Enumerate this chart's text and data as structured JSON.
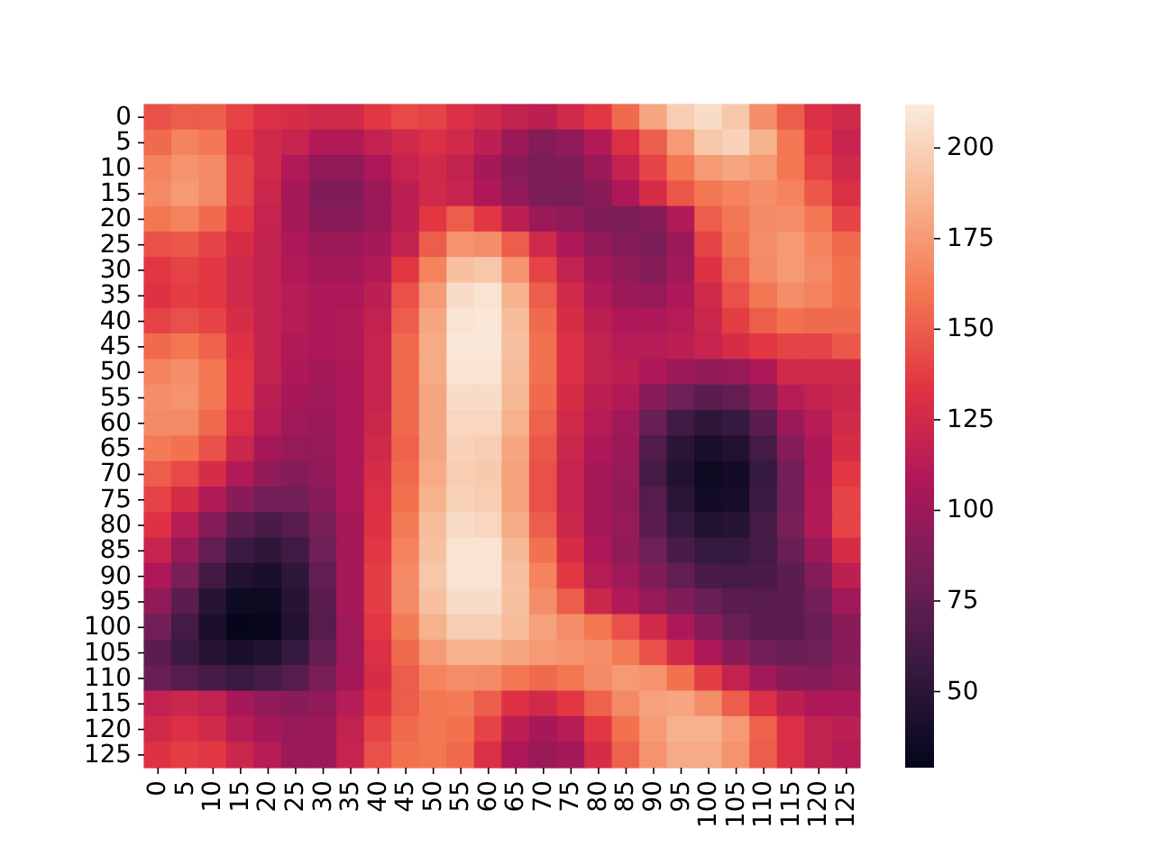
{
  "chart_data": {
    "type": "heatmap",
    "categories": [
      "0",
      "5",
      "10",
      "15",
      "20",
      "25",
      "30",
      "35",
      "40",
      "45",
      "50",
      "55",
      "60",
      "65",
      "70",
      "75",
      "80",
      "85",
      "90",
      "95",
      "100",
      "105",
      "110",
      "115",
      "120",
      "125"
    ],
    "y_categories": [
      "0",
      "5",
      "10",
      "15",
      "20",
      "25",
      "30",
      "35",
      "40",
      "45",
      "50",
      "55",
      "60",
      "65",
      "70",
      "75",
      "80",
      "85",
      "90",
      "95",
      "100",
      "105",
      "110",
      "115",
      "120",
      "125"
    ],
    "cells": [
      [
        145,
        150,
        150,
        140,
        130,
        128,
        125,
        125,
        135,
        142,
        140,
        130,
        125,
        118,
        115,
        125,
        135,
        155,
        180,
        198,
        205,
        195,
        170,
        150,
        130,
        125
      ],
      [
        155,
        165,
        160,
        135,
        125,
        120,
        110,
        110,
        118,
        125,
        130,
        125,
        115,
        100,
        90,
        95,
        110,
        130,
        150,
        175,
        195,
        200,
        185,
        160,
        135,
        120
      ],
      [
        165,
        172,
        168,
        140,
        125,
        110,
        95,
        95,
        108,
        120,
        125,
        118,
        105,
        92,
        85,
        88,
        100,
        118,
        140,
        160,
        175,
        180,
        175,
        160,
        140,
        125
      ],
      [
        168,
        175,
        168,
        140,
        122,
        105,
        88,
        88,
        100,
        115,
        125,
        120,
        108,
        95,
        85,
        85,
        92,
        108,
        128,
        148,
        160,
        165,
        170,
        165,
        148,
        130
      ],
      [
        160,
        165,
        155,
        135,
        120,
        105,
        92,
        92,
        100,
        115,
        135,
        150,
        135,
        115,
        100,
        95,
        88,
        85,
        90,
        110,
        150,
        160,
        168,
        170,
        160,
        140
      ],
      [
        145,
        148,
        140,
        128,
        118,
        108,
        100,
        100,
        105,
        118,
        150,
        172,
        170,
        150,
        125,
        108,
        96,
        90,
        86,
        100,
        140,
        158,
        170,
        175,
        165,
        155
      ],
      [
        135,
        140,
        135,
        125,
        118,
        110,
        105,
        105,
        110,
        135,
        165,
        192,
        195,
        172,
        140,
        118,
        105,
        95,
        90,
        102,
        132,
        152,
        168,
        175,
        168,
        158
      ],
      [
        132,
        138,
        135,
        125,
        118,
        112,
        108,
        108,
        115,
        145,
        175,
        205,
        208,
        185,
        150,
        125,
        110,
        100,
        98,
        108,
        125,
        145,
        160,
        170,
        165,
        158
      ],
      [
        140,
        145,
        140,
        128,
        118,
        112,
        108,
        110,
        118,
        150,
        180,
        208,
        210,
        190,
        155,
        128,
        115,
        108,
        108,
        112,
        122,
        138,
        150,
        158,
        155,
        155
      ],
      [
        155,
        160,
        152,
        132,
        118,
        110,
        108,
        110,
        120,
        155,
        182,
        210,
        210,
        192,
        158,
        130,
        118,
        112,
        112,
        115,
        120,
        128,
        135,
        140,
        140,
        148
      ],
      [
        165,
        170,
        160,
        135,
        118,
        108,
        105,
        108,
        120,
        155,
        182,
        208,
        208,
        190,
        158,
        130,
        118,
        115,
        108,
        100,
        95,
        98,
        108,
        125,
        125,
        125
      ],
      [
        170,
        172,
        160,
        135,
        115,
        105,
        102,
        108,
        120,
        155,
        180,
        205,
        205,
        188,
        155,
        128,
        115,
        110,
        92,
        80,
        72,
        75,
        90,
        112,
        118,
        122
      ],
      [
        168,
        168,
        155,
        130,
        112,
        102,
        100,
        108,
        122,
        155,
        180,
        202,
        202,
        185,
        152,
        125,
        112,
        102,
        78,
        60,
        52,
        55,
        72,
        100,
        112,
        125
      ],
      [
        162,
        158,
        145,
        122,
        105,
        98,
        98,
        108,
        125,
        152,
        180,
        200,
        198,
        180,
        148,
        122,
        108,
        100,
        68,
        50,
        42,
        45,
        62,
        90,
        108,
        128
      ],
      [
        150,
        142,
        128,
        110,
        95,
        90,
        95,
        108,
        128,
        155,
        182,
        198,
        196,
        178,
        145,
        120,
        105,
        98,
        62,
        45,
        35,
        38,
        55,
        82,
        108,
        135
      ],
      [
        140,
        128,
        110,
        92,
        82,
        82,
        92,
        108,
        130,
        158,
        185,
        200,
        198,
        178,
        145,
        120,
        105,
        96,
        70,
        50,
        38,
        40,
        58,
        82,
        110,
        140
      ],
      [
        132,
        112,
        90,
        72,
        65,
        70,
        85,
        105,
        132,
        162,
        190,
        205,
        202,
        182,
        150,
        122,
        105,
        98,
        72,
        55,
        45,
        48,
        62,
        85,
        110,
        140
      ],
      [
        120,
        98,
        75,
        58,
        52,
        60,
        80,
        105,
        135,
        165,
        192,
        208,
        208,
        188,
        158,
        128,
        108,
        95,
        80,
        65,
        55,
        55,
        62,
        78,
        100,
        128
      ],
      [
        108,
        85,
        60,
        45,
        42,
        52,
        75,
        105,
        138,
        168,
        195,
        208,
        208,
        192,
        165,
        135,
        112,
        102,
        88,
        75,
        65,
        62,
        65,
        72,
        90,
        115
      ],
      [
        95,
        72,
        48,
        35,
        35,
        48,
        72,
        105,
        138,
        168,
        192,
        205,
        205,
        192,
        170,
        150,
        122,
        110,
        98,
        88,
        78,
        72,
        70,
        72,
        82,
        102
      ],
      [
        82,
        62,
        42,
        30,
        32,
        45,
        70,
        102,
        135,
        162,
        185,
        198,
        198,
        190,
        178,
        170,
        160,
        145,
        125,
        108,
        92,
        78,
        72,
        72,
        78,
        92
      ],
      [
        72,
        58,
        48,
        42,
        45,
        55,
        75,
        102,
        130,
        155,
        175,
        185,
        185,
        180,
        175,
        172,
        170,
        162,
        145,
        125,
        108,
        92,
        82,
        78,
        80,
        92
      ],
      [
        78,
        70,
        62,
        58,
        62,
        70,
        85,
        105,
        128,
        150,
        165,
        170,
        168,
        160,
        155,
        160,
        168,
        175,
        172,
        158,
        138,
        118,
        102,
        92,
        90,
        95
      ],
      [
        118,
        122,
        118,
        105,
        95,
        92,
        95,
        112,
        132,
        150,
        160,
        162,
        150,
        132,
        125,
        135,
        152,
        168,
        178,
        180,
        170,
        150,
        130,
        115,
        108,
        108
      ],
      [
        125,
        130,
        125,
        112,
        105,
        98,
        100,
        118,
        140,
        155,
        160,
        158,
        140,
        115,
        105,
        112,
        135,
        158,
        175,
        185,
        185,
        175,
        152,
        130,
        118,
        115
      ],
      [
        132,
        138,
        135,
        122,
        112,
        100,
        100,
        120,
        145,
        158,
        160,
        155,
        130,
        108,
        100,
        105,
        128,
        152,
        172,
        182,
        182,
        172,
        150,
        130,
        118,
        112
      ]
    ],
    "clim": [
      29,
      212
    ],
    "cticks": [
      50,
      75,
      100,
      125,
      150,
      175,
      200
    ]
  }
}
